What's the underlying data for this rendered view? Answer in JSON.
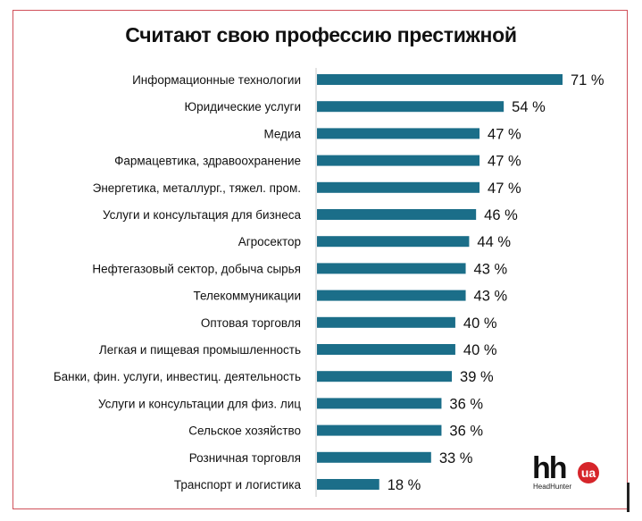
{
  "chart_data": {
    "type": "bar",
    "orientation": "horizontal",
    "title": "Считают свою профессию престижной",
    "categories": [
      "Информационные технологии",
      "Юридические услуги",
      "Медиа",
      "Фармацевтика, здравоохранение",
      "Энергетика, металлург., тяжел. пром.",
      "Услуги и консультация для бизнеса",
      "Агросектор",
      "Нефтегазовый сектор, добыча сырья",
      "Телекоммуникации",
      "Оптовая торговля",
      "Легкая и пищевая промышленность",
      "Банки, фин. услуги, инвестиц. деятельность",
      "Услуги и консультации для физ. лиц",
      "Сельское хозяйство",
      "Розничная торговля",
      "Транспорт и логистика"
    ],
    "values": [
      71,
      54,
      47,
      47,
      47,
      46,
      44,
      43,
      43,
      40,
      40,
      39,
      36,
      36,
      33,
      18
    ],
    "value_suffix": " %",
    "xlabel": "",
    "ylabel": "",
    "xlim": [
      0,
      75
    ],
    "grid": false,
    "bar_color": "#1b6e89"
  },
  "logo": {
    "text": "hh",
    "badge": "ua",
    "subtitle": "HeadHunter",
    "badge_color": "#d6252a"
  }
}
